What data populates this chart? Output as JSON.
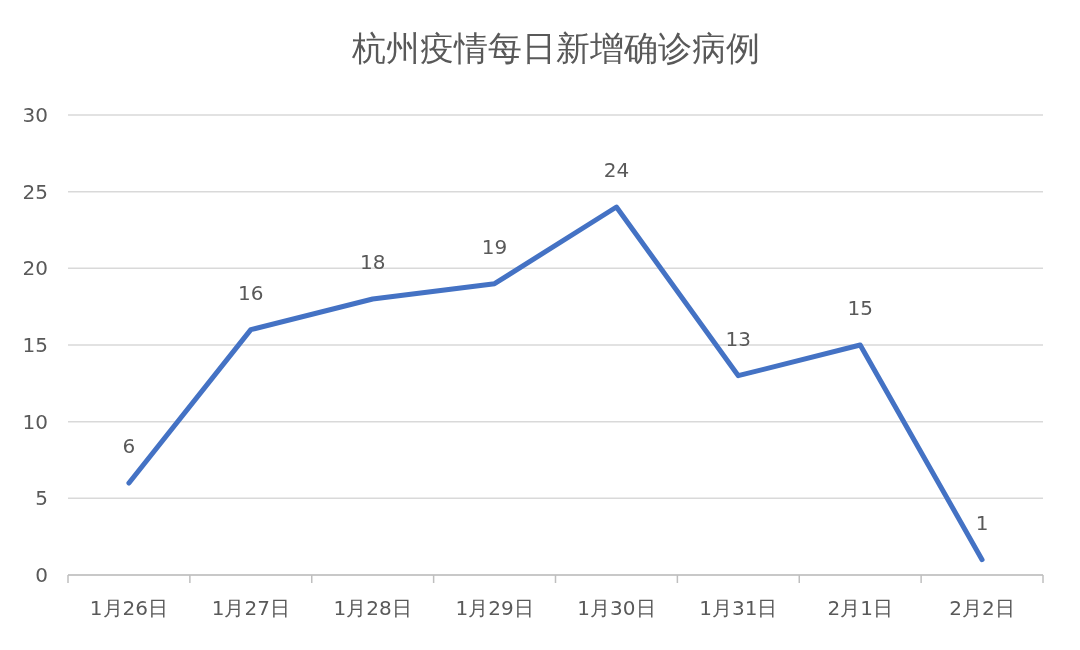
{
  "chart_data": {
    "type": "line",
    "title": "杭州疫情每日新增确诊病例",
    "categories": [
      "1月26日",
      "1月27日",
      "1月28日",
      "1月29日",
      "1月30日",
      "1月31日",
      "2月1日",
      "2月2日"
    ],
    "values": [
      6,
      16,
      18,
      19,
      24,
      13,
      15,
      1
    ],
    "color": "#4472c4",
    "ylim": [
      0,
      30
    ],
    "yticks": [
      0,
      5,
      10,
      15,
      20,
      25,
      30
    ],
    "grid": "y",
    "data_labels": true
  }
}
